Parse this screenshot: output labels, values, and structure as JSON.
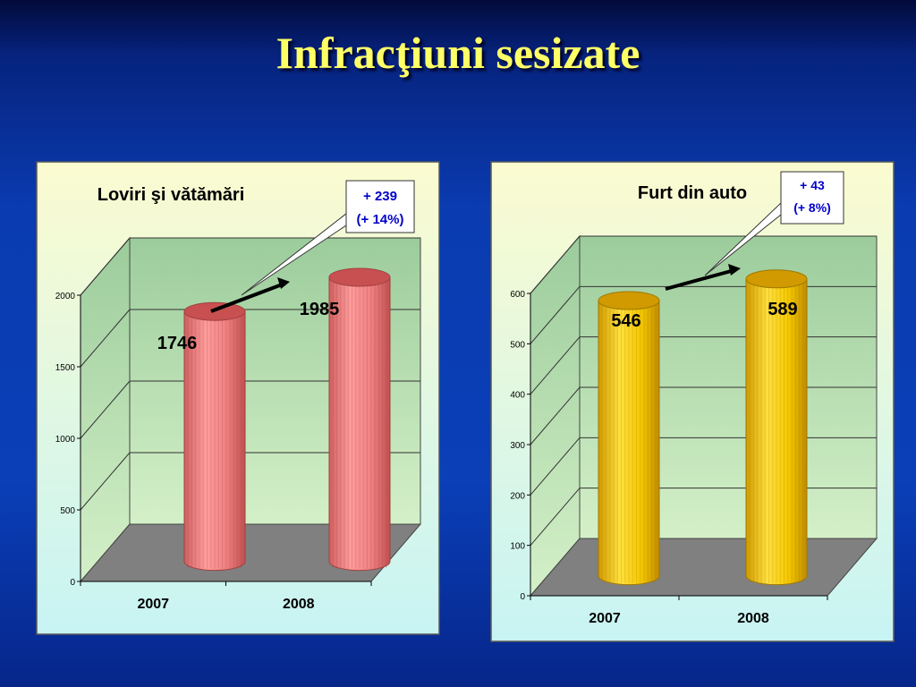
{
  "slide": {
    "title": "Infracţiuni sesizate"
  },
  "colors": {
    "red_bar": "#f08080",
    "red_top": "#c85050",
    "yellow_bar": "#f5c800",
    "yellow_top": "#d09a00",
    "wall": "#a8d8a8",
    "floor": "#808080",
    "arrow": "#000000",
    "callout_text": "#0000cc"
  },
  "chart_data": [
    {
      "type": "bar",
      "title": "Loviri şi vătămări",
      "categories": [
        "2007",
        "2008"
      ],
      "values": [
        1746,
        1985
      ],
      "data_labels": [
        "1746",
        "1985"
      ],
      "ylim": [
        0,
        2000
      ],
      "yticks": [
        "0",
        "500",
        "1000",
        "1500",
        "2000"
      ],
      "grid": true,
      "color": "red",
      "callout": {
        "line1": "+ 239",
        "line2": "(+ 14%)"
      }
    },
    {
      "type": "bar",
      "title": "Furt din auto",
      "categories": [
        "2007",
        "2008"
      ],
      "values": [
        546,
        589
      ],
      "data_labels": [
        "546",
        "589"
      ],
      "ylim": [
        0,
        600
      ],
      "yticks": [
        "0",
        "100",
        "200",
        "300",
        "400",
        "500",
        "600"
      ],
      "grid": true,
      "color": "yellow",
      "callout": {
        "line1": "+ 43",
        "line2": "(+ 8%)"
      }
    }
  ]
}
